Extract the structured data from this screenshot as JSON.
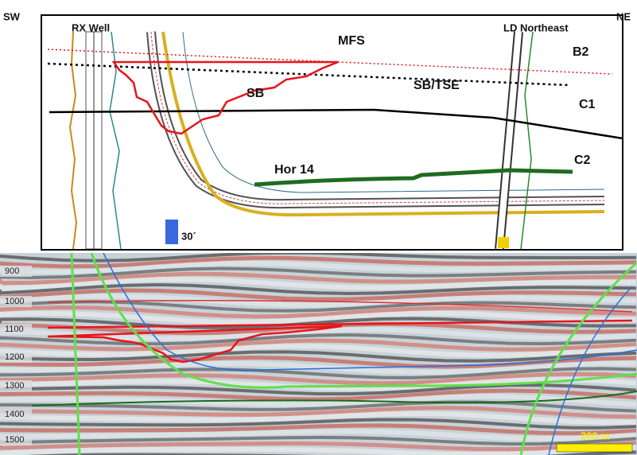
{
  "header": {
    "left": "SW",
    "right": "NE"
  },
  "wells": [
    {
      "label": "RX Well"
    },
    {
      "label": "LD Northeast"
    }
  ],
  "surfaces": {
    "mfs": "MFS",
    "sb_tse": "SB/TSE",
    "sb": "SB",
    "hor14": "Hor 14"
  },
  "zones": [
    "B2",
    "C1",
    "C2"
  ],
  "vertical_scale": "30´",
  "seismic": {
    "depth_labels": [
      "900",
      "1000",
      "1100",
      "1200",
      "1300",
      "1400",
      "1500"
    ],
    "scale_bar": "200 m"
  }
}
